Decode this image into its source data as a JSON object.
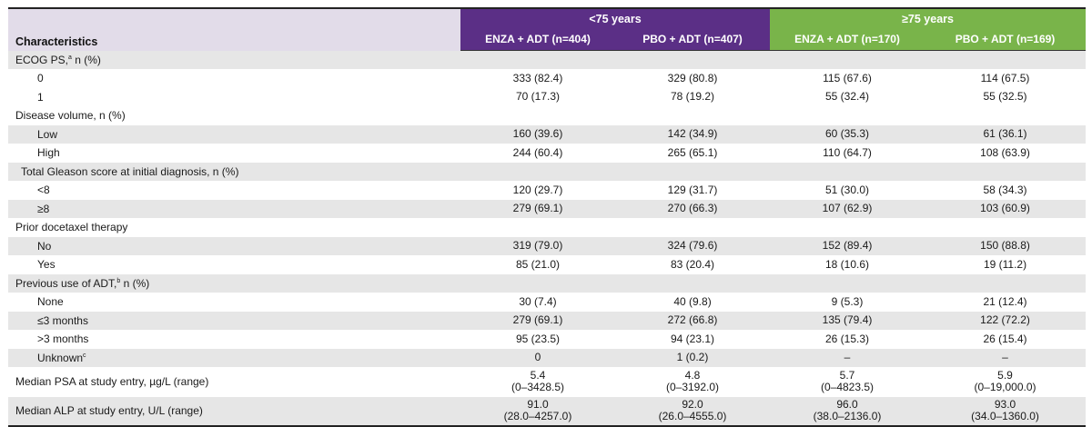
{
  "header": {
    "characteristics_label": "Characteristics",
    "group_young": "<75 years",
    "group_old": "≥75 years",
    "columns": [
      "ENZA + ADT (n=404)",
      "PBO + ADT (n=407)",
      "ENZA + ADT (n=170)",
      "PBO + ADT (n=169)"
    ]
  },
  "rows": [
    {
      "label": "ECOG PS,",
      "sup": "a",
      "label_after": " n (%)",
      "indent": 0,
      "shade": true,
      "values": [
        "",
        "",
        "",
        ""
      ]
    },
    {
      "label": "0",
      "indent": 2,
      "shade": false,
      "values": [
        "333 (82.4)",
        "329 (80.8)",
        "115 (67.6)",
        "114 (67.5)"
      ]
    },
    {
      "label": "1",
      "indent": 2,
      "shade": false,
      "values": [
        "70 (17.3)",
        "78 (19.2)",
        "55 (32.4)",
        "55 (32.5)"
      ]
    },
    {
      "label": "Disease volume, n (%)",
      "indent": 0,
      "shade": false,
      "values": [
        "",
        "",
        "",
        ""
      ]
    },
    {
      "label": "Low",
      "indent": 2,
      "shade": true,
      "values": [
        "160 (39.6)",
        "142 (34.9)",
        "60 (35.3)",
        "61 (36.1)"
      ]
    },
    {
      "label": "High",
      "indent": 2,
      "shade": false,
      "values": [
        "244 (60.4)",
        "265 (65.1)",
        "110 (64.7)",
        "108 (63.9)"
      ]
    },
    {
      "label": "Total Gleason score at initial diagnosis, n (%)",
      "indent": 1,
      "shade": true,
      "values": [
        "",
        "",
        "",
        ""
      ]
    },
    {
      "label": "<8",
      "indent": 2,
      "shade": false,
      "values": [
        "120 (29.7)",
        "129 (31.7)",
        "51 (30.0)",
        "58 (34.3)"
      ]
    },
    {
      "label": "≥8",
      "indent": 2,
      "shade": true,
      "values": [
        "279 (69.1)",
        "270 (66.3)",
        "107 (62.9)",
        "103 (60.9)"
      ]
    },
    {
      "label": "Prior docetaxel therapy",
      "indent": 0,
      "shade": false,
      "values": [
        "",
        "",
        "",
        ""
      ]
    },
    {
      "label": "No",
      "indent": 2,
      "shade": true,
      "values": [
        "319 (79.0)",
        "324 (79.6)",
        "152 (89.4)",
        "150 (88.8)"
      ]
    },
    {
      "label": "Yes",
      "indent": 2,
      "shade": false,
      "values": [
        "85 (21.0)",
        "83 (20.4)",
        "18 (10.6)",
        "19 (11.2)"
      ]
    },
    {
      "label": "Previous use of ADT,",
      "sup": "b",
      "label_after": " n (%)",
      "indent": 0,
      "shade": true,
      "values": [
        "",
        "",
        "",
        ""
      ]
    },
    {
      "label": "None",
      "indent": 2,
      "shade": false,
      "values": [
        "30 (7.4)",
        "40 (9.8)",
        "9 (5.3)",
        "21 (12.4)"
      ]
    },
    {
      "label": "≤3 months",
      "indent": 2,
      "shade": true,
      "values": [
        "279 (69.1)",
        "272 (66.8)",
        "135 (79.4)",
        "122 (72.2)"
      ]
    },
    {
      "label": ">3 months",
      "indent": 2,
      "shade": false,
      "values": [
        "95 (23.5)",
        "94 (23.1)",
        "26 (15.3)",
        "26 (15.4)"
      ]
    },
    {
      "label": "Unknown",
      "sup": "c",
      "label_after": "",
      "indent": 2,
      "shade": true,
      "values": [
        "0",
        "1 (0.2)",
        "–",
        "–"
      ]
    },
    {
      "label": "Median PSA at study entry, µg/L (range)",
      "indent": 0,
      "shade": false,
      "tall": true,
      "values": [
        "5.4\n(0–3428.5)",
        "4.8\n(0–3192.0)",
        "5.7\n(0–4823.5)",
        "5.9\n(0–19,000.0)"
      ]
    },
    {
      "label": "Median ALP at study entry, U/L (range)",
      "indent": 0,
      "shade": true,
      "tall": true,
      "values": [
        "91.0\n(28.0–4257.0)",
        "92.0\n(26.0–4555.0)",
        "96.0\n(38.0–2136.0)",
        "93.0\n(34.0–1360.0)"
      ]
    }
  ],
  "colors": {
    "purple": "#5b2f86",
    "green": "#79b44a",
    "header_lavender": "#e2dce9",
    "row_shade": "#e6e6e6"
  }
}
